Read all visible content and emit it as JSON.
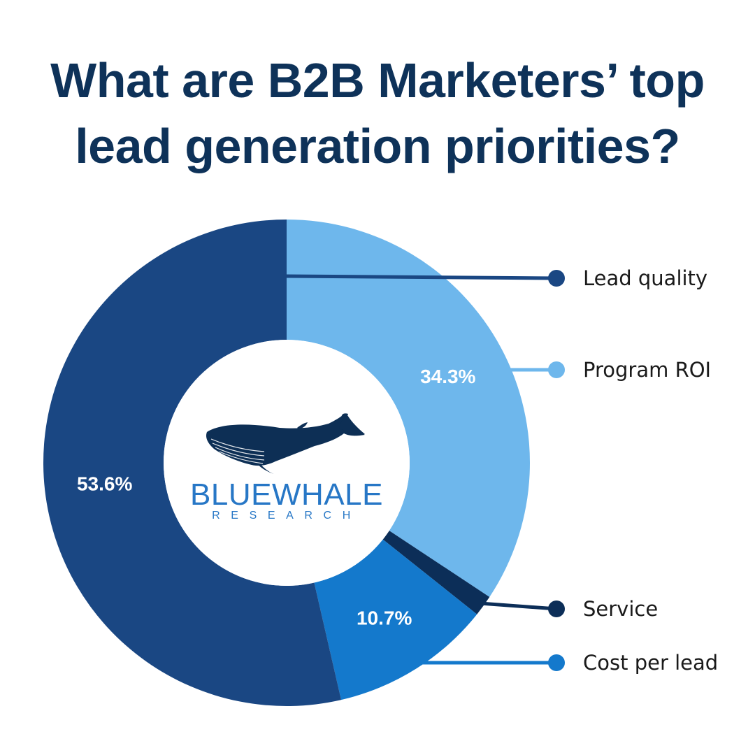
{
  "chart_data": {
    "type": "pie",
    "title_lines": [
      "What are B2B Marketers’ top",
      "lead generation priorities?"
    ],
    "slices": [
      {
        "name": "Program ROI",
        "value": 34.3,
        "label": "34.3%",
        "color": "#6eb7ec"
      },
      {
        "name": "Service",
        "value": 1.4,
        "label": "",
        "color": "#0c2e58"
      },
      {
        "name": "Cost per lead",
        "value": 10.7,
        "label": "10.7%",
        "color": "#1479cc"
      },
      {
        "name": "Lead quality",
        "value": 53.6,
        "label": "53.6%",
        "color": "#1a4783"
      }
    ],
    "legend_order": [
      "Lead quality",
      "Program ROI",
      "Service",
      "Cost per lead"
    ],
    "legend_placement": "right",
    "donut": true
  },
  "logo": {
    "name": "BLUEWHALE",
    "subtitle": "RESEARCH",
    "icon": "whale-icon"
  }
}
